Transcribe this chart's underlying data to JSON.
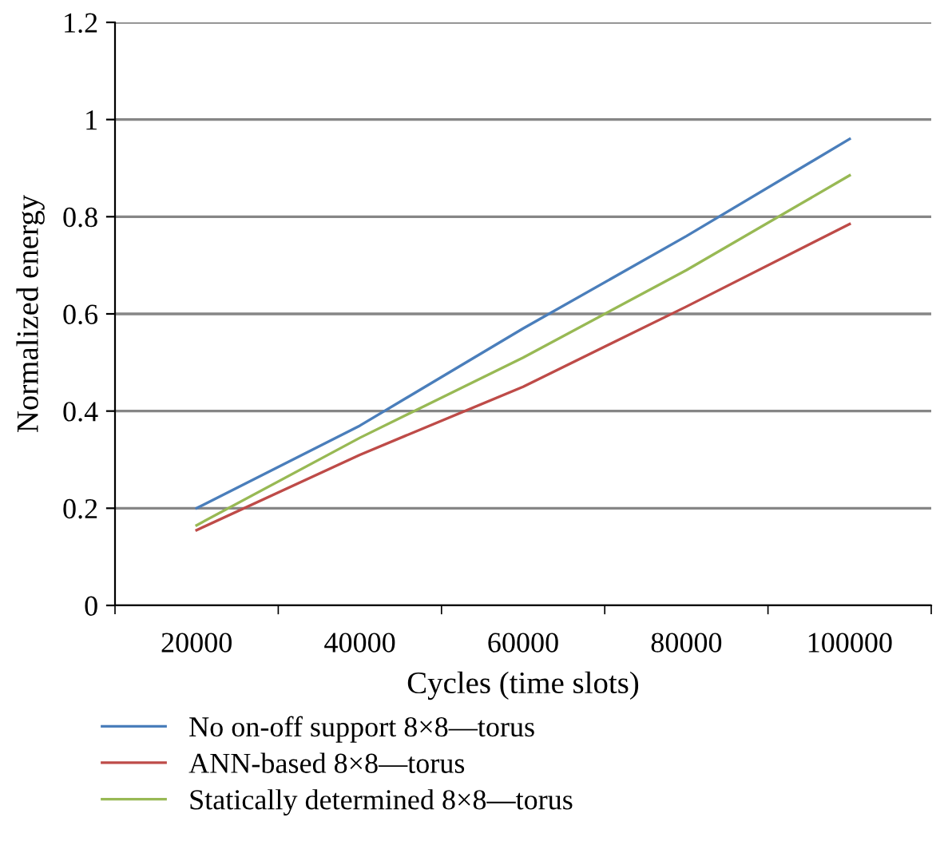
{
  "chart_data": {
    "type": "line",
    "xlabel": "Cycles (time slots)",
    "ylabel": "Normalized energy",
    "categories": [
      "20000",
      "40000",
      "60000",
      "80000",
      "100000"
    ],
    "series": [
      {
        "name": "No on-off support 8×8—torus",
        "color": "#4a7ebb",
        "values": [
          0.2,
          0.37,
          0.57,
          0.76,
          0.96
        ]
      },
      {
        "name": "ANN-based 8×8—torus",
        "color": "#be4b48",
        "values": [
          0.155,
          0.31,
          0.45,
          0.615,
          0.785
        ]
      },
      {
        "name": "Statically determined 8×8—torus",
        "color": "#98b954",
        "values": [
          0.165,
          0.345,
          0.51,
          0.69,
          0.885
        ]
      }
    ],
    "ylim": [
      0,
      1.2
    ],
    "yticks": [
      0,
      0.2,
      0.4,
      0.6,
      0.8,
      1,
      1.2
    ],
    "grid": "y",
    "legend": "bottom",
    "marker": "none",
    "line_style": "solid"
  }
}
